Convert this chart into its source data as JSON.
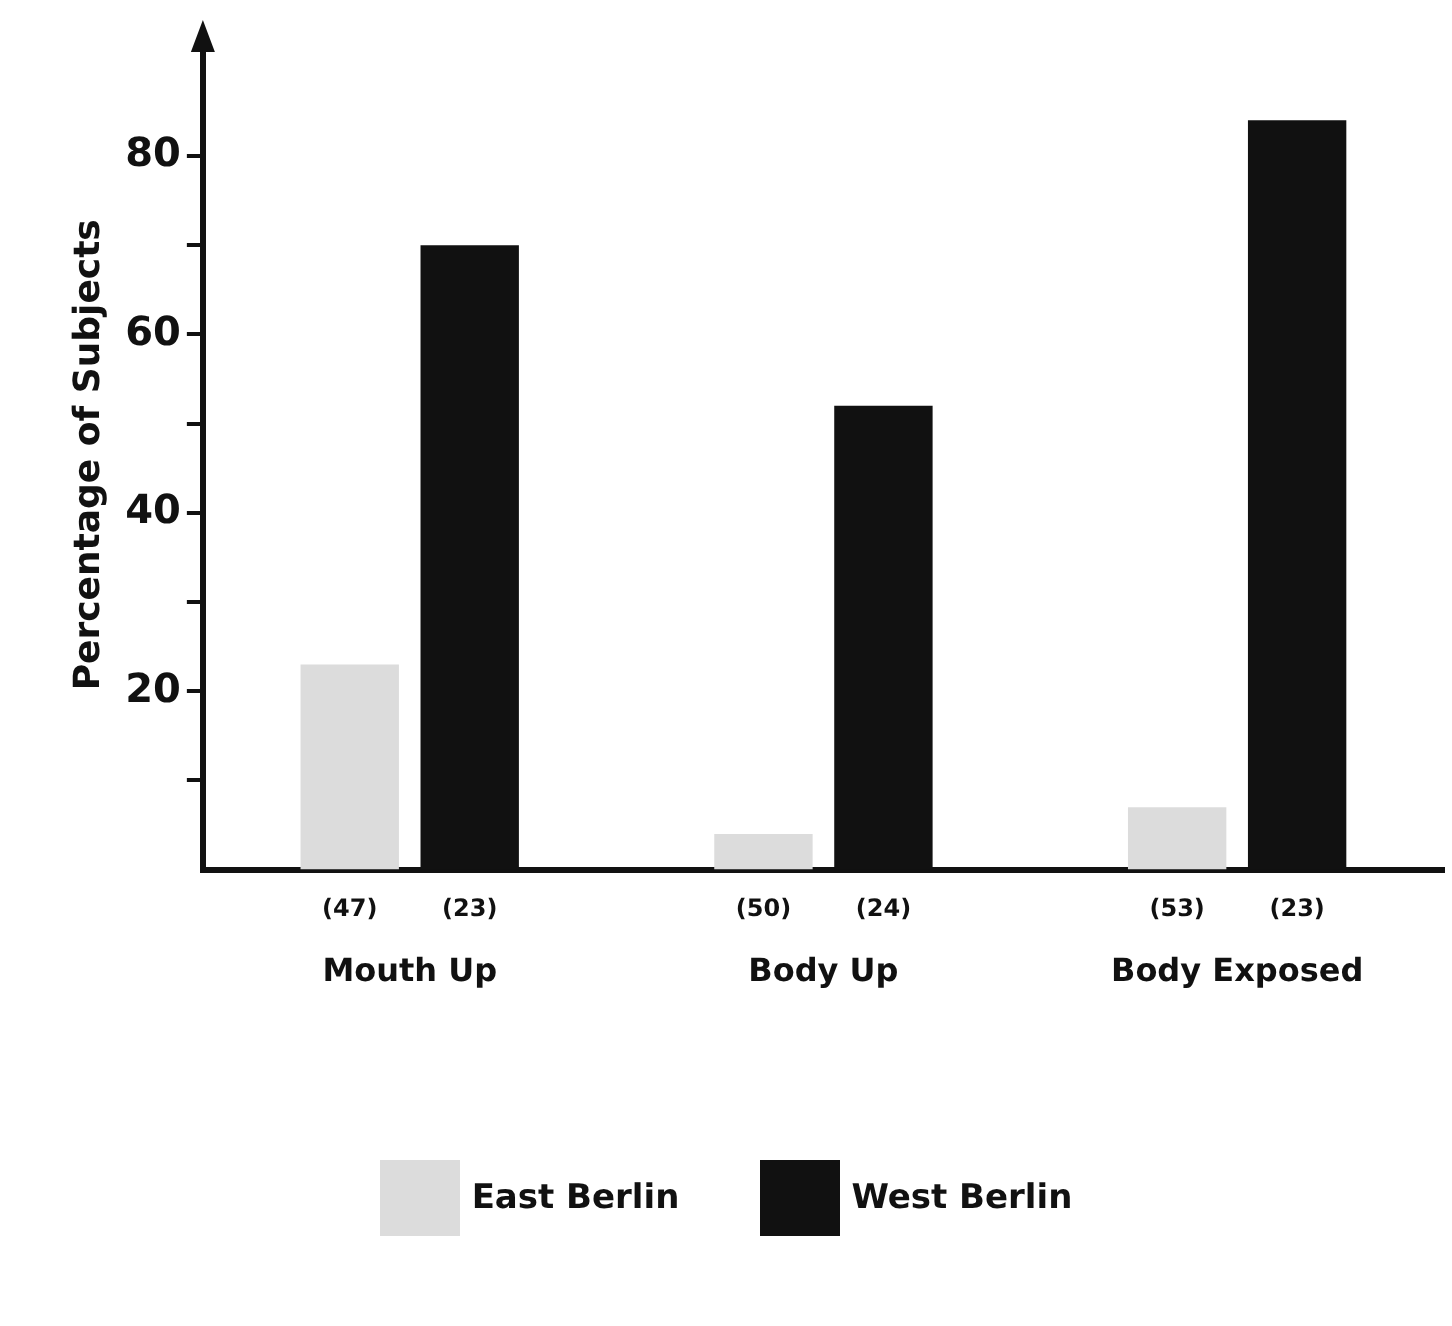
{
  "chart_data": {
    "type": "bar",
    "ylabel": "Percentage of Subjects",
    "categories": [
      "Mouth Up",
      "Body Up",
      "Body Exposed"
    ],
    "series": [
      {
        "name": "East Berlin",
        "color": "#dcdcdc",
        "values": [
          23,
          4,
          7
        ]
      },
      {
        "name": "West Berlin",
        "color": "#111111",
        "values": [
          70,
          52,
          84
        ]
      }
    ],
    "ylim": [
      0,
      93
    ],
    "yticks": [
      {
        "value": 10,
        "label": null
      },
      20,
      {
        "value": 30,
        "label": null
      },
      40,
      {
        "value": 50,
        "label": null
      },
      60,
      {
        "value": 70,
        "label": null
      },
      80
    ],
    "annotations": [
      "(47)",
      "(23)",
      "(50)",
      "(24)",
      "(53)",
      "(23)"
    ],
    "grid": false,
    "legend": "bottom"
  }
}
